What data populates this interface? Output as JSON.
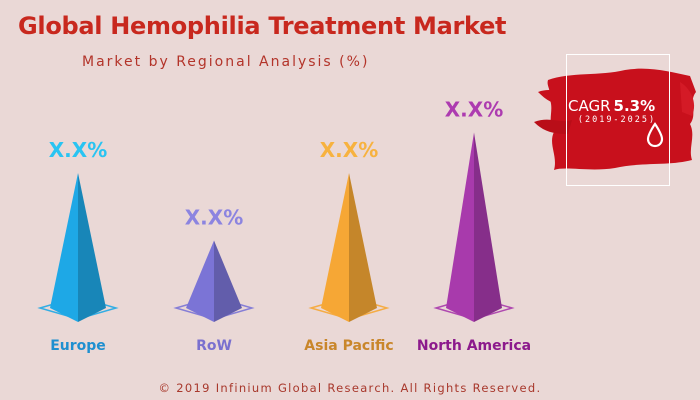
{
  "title": "Global Hemophilia Treatment Market",
  "subtitle": "Market by Regional Analysis (%)",
  "cagr": {
    "label": "CAGR",
    "value": "5.3%",
    "period": "(2019-2025)"
  },
  "footer": "© 2019 Infinium Global Research. All Rights Reserved.",
  "icons": {
    "cagr_icon": "water-drop-icon"
  },
  "colors": {
    "title": "#c8281e",
    "cagr_banner": "#c8101c"
  },
  "chart_data": {
    "type": "bar",
    "categories": [
      "Europe",
      "RoW",
      "Asia Pacific",
      "North America"
    ],
    "value_labels": [
      "X.X%",
      "X.X%",
      "X.X%",
      "X.X%"
    ],
    "values": [
      3,
      1.5,
      3,
      3.9
    ],
    "ylim": [
      0,
      4
    ],
    "grid": false,
    "colors": [
      "#1ea8e6",
      "#7b74d6",
      "#f6a735",
      "#a83aac"
    ],
    "label_colors": [
      "#1f8fd0",
      "#7a70cf",
      "#c9862a",
      "#8c1a8c"
    ],
    "value_label_colors": [
      "#29c4f2",
      "#8c84e0",
      "#f7b23f",
      "#ad3bb0"
    ]
  }
}
